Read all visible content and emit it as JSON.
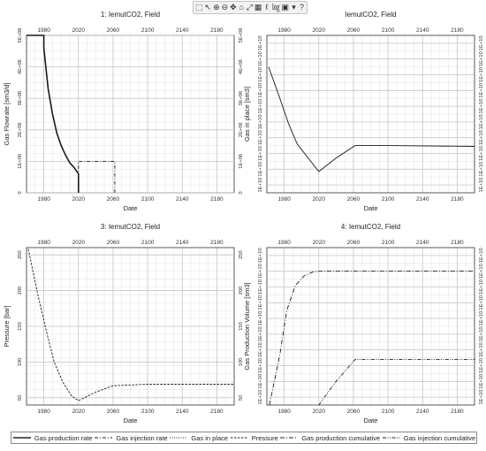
{
  "toolbar": {
    "icons": [
      "pointer-icon",
      "select-icon",
      "zoom-in-icon",
      "zoom-out-icon",
      "pan-icon",
      "home-icon",
      "fit-icon",
      "chart-type-icon",
      "linear-icon",
      "log-icon",
      "save-icon",
      "settings-icon",
      "help-icon"
    ],
    "glyphs": [
      "⬚",
      "↖",
      "⊕",
      "⊖",
      "✥",
      "⌂",
      "⤢",
      "▦",
      "ℓ",
      "㏒",
      "▣",
      "▾",
      "?"
    ]
  },
  "legend": [
    {
      "label": "Gas production rate",
      "dash": "solid"
    },
    {
      "label": "Gas injection rate",
      "dash": "dashdot"
    },
    {
      "label": "Gas in place",
      "dash": "dotted"
    },
    {
      "label": "Pressure",
      "dash": "dashed"
    },
    {
      "label": "Gas production cumulative",
      "dash": "dashdot2"
    },
    {
      "label": "Gas injection cumulative",
      "dash": "dashdotdot"
    }
  ],
  "chart_data": [
    {
      "type": "line",
      "title": "1: IemutCO2, Field",
      "xlabel": "Date",
      "ylabel": "Gas Flowrate [sm3/d]",
      "xlim": [
        1960,
        2200
      ],
      "ylim": [
        0,
        5000000
      ],
      "xticks": [
        1980,
        2020,
        2060,
        2100,
        2140,
        2180
      ],
      "yticks_left": [
        "0",
        "1E+06",
        "2E+06",
        "3E+06",
        "4E+06",
        "5E+06"
      ],
      "yticks_right": [
        "0",
        "1E+06",
        "2E+06",
        "3E+06",
        "4E+06",
        "5E+06"
      ],
      "series": [
        {
          "name": "Gas production rate",
          "dash": "solid",
          "x": [
            1960,
            1980,
            1980,
            1985,
            1990,
            1995,
            2000,
            2005,
            2010,
            2015,
            2020,
            2020
          ],
          "y": [
            5000000,
            5000000,
            4600000,
            3300000,
            2500000,
            1900000,
            1500000,
            1200000,
            950000,
            800000,
            600000,
            0
          ]
        },
        {
          "name": "Gas injection rate",
          "dash": "dashdot",
          "x": [
            2020,
            2020,
            2062,
            2062
          ],
          "y": [
            0,
            1000000,
            1000000,
            0
          ]
        }
      ]
    },
    {
      "type": "line",
      "title": "IemutCO2, Field",
      "xlabel": "Date",
      "ylabel": "Gas in place [sm3]",
      "xlim": [
        1960,
        2200
      ],
      "ylim": [
        0,
        10
      ],
      "xticks": [
        1980,
        2020,
        2060,
        2100,
        2140,
        2180
      ],
      "yticks_left": [
        "1E+10",
        "1E+10",
        "1E+10",
        "1E+10",
        "1E+10",
        "1E+10",
        "1E+10",
        "1E+10",
        "1E+10",
        "1E+10"
      ],
      "yticks_right": [
        "1E+10",
        "1E+10",
        "1E+10",
        "1E+10",
        "1E+10",
        "1E+10",
        "1E+10",
        "1E+10",
        "1E+10",
        "1E+10"
      ],
      "series": [
        {
          "name": "Gas in place",
          "dash": "solid",
          "x": [
            1962,
            1975,
            1985,
            1995,
            2005,
            2020,
            2040,
            2062,
            2100,
            2200
          ],
          "y": [
            8.0,
            6.0,
            4.4,
            3.1,
            2.4,
            1.35,
            2.2,
            3.0,
            3.0,
            2.95
          ]
        }
      ]
    },
    {
      "type": "line",
      "title": "3: IemutCO2, Field",
      "xlabel": "Date",
      "ylabel": "Pressure [bar]",
      "xlim": [
        1960,
        2200
      ],
      "ylim": [
        40,
        260
      ],
      "xticks": [
        1980,
        2020,
        2060,
        2100,
        2140,
        2180
      ],
      "yticks_left": [
        "50",
        "100",
        "150",
        "200",
        "250"
      ],
      "yticks_right": [
        "50",
        "100",
        "150",
        "200",
        "250"
      ],
      "series": [
        {
          "name": "Pressure",
          "dash": "dashed",
          "x": [
            1962,
            1972,
            1982,
            1992,
            2002,
            2012,
            2020,
            2040,
            2060,
            2100,
            2200
          ],
          "y": [
            258,
            200,
            148,
            100,
            72,
            53,
            46,
            58,
            67,
            69,
            69
          ]
        }
      ]
    },
    {
      "type": "line",
      "title": "4: IemutCO2, Field",
      "xlabel": "Date",
      "ylabel": "Gas Production Volume [sm3]",
      "xlim": [
        1960,
        2200
      ],
      "ylim": [
        0,
        10
      ],
      "xticks": [
        1980,
        2020,
        2060,
        2100,
        2140,
        2180
      ],
      "yticks_left": [
        "1E+10",
        "1E+10",
        "1E+10",
        "1E+10",
        "1E+10",
        "1E+10",
        "1E+10",
        "1E+10",
        "1E+10",
        "1E+10"
      ],
      "yticks_right": [
        "1E+10",
        "1E+10",
        "1E+10",
        "1E+10",
        "1E+10",
        "1E+10",
        "1E+10",
        "1E+10",
        "1E+10",
        "1E+10"
      ],
      "series": [
        {
          "name": "Gas production cumulative",
          "dash": "dashdot2",
          "x": [
            1963,
            1975,
            1983,
            1993,
            2003,
            2013,
            2020,
            2200
          ],
          "y": [
            0,
            3.2,
            6.0,
            7.6,
            8.2,
            8.45,
            8.5,
            8.5
          ]
        },
        {
          "name": "Gas injection cumulative",
          "dash": "dashdotdot",
          "x": [
            2020,
            2040,
            2062,
            2200
          ],
          "y": [
            0,
            1.5,
            2.9,
            2.9
          ]
        }
      ]
    }
  ]
}
